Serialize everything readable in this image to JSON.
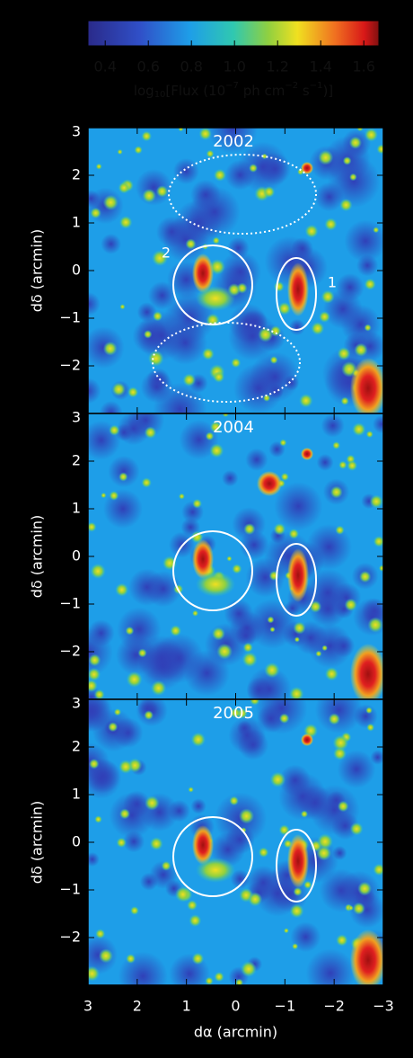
{
  "colorbar": {
    "clim": [
      0.32,
      1.67
    ],
    "ticks": [
      0.4,
      0.6,
      0.8,
      1.0,
      1.2,
      1.4,
      1.6
    ],
    "label": [
      "log",
      "10",
      "[Flux (10",
      "−7",
      " ph cm",
      "−2",
      " s",
      "−1",
      ")]"
    ]
  },
  "chart_data": [
    {
      "type": "image",
      "title": "2002",
      "ylabel": "dδ (arcmin)",
      "ylim": [
        -3,
        3
      ],
      "yticks": [
        {
          "value": -2,
          "label": "−2"
        },
        {
          "value": -1,
          "label": "−1"
        },
        0,
        1,
        2,
        3
      ],
      "region_labels": [
        "2",
        "1"
      ]
    },
    {
      "type": "image",
      "title": "2004",
      "ylabel": "dδ (arcmin)",
      "ylim": [
        -3,
        3
      ],
      "yticks": [
        {
          "value": -2,
          "label": "−2"
        },
        {
          "value": -1,
          "label": "−1"
        },
        0,
        1,
        2,
        3
      ]
    },
    {
      "type": "image",
      "title": "2005",
      "ylabel": "dδ (arcmin)",
      "ylim": [
        -3,
        3
      ],
      "yticks": [
        {
          "value": -2,
          "label": "−2"
        },
        {
          "value": -1,
          "label": "−1"
        },
        0,
        1,
        2,
        3
      ],
      "xlabel": "dα (arcmin)",
      "xlim": [
        3,
        -3
      ],
      "xticks": [
        3,
        2,
        1,
        0,
        {
          "value": -1,
          "label": "−1"
        },
        {
          "value": -2,
          "label": "−2"
        },
        {
          "value": -3,
          "label": "−3"
        }
      ]
    }
  ]
}
